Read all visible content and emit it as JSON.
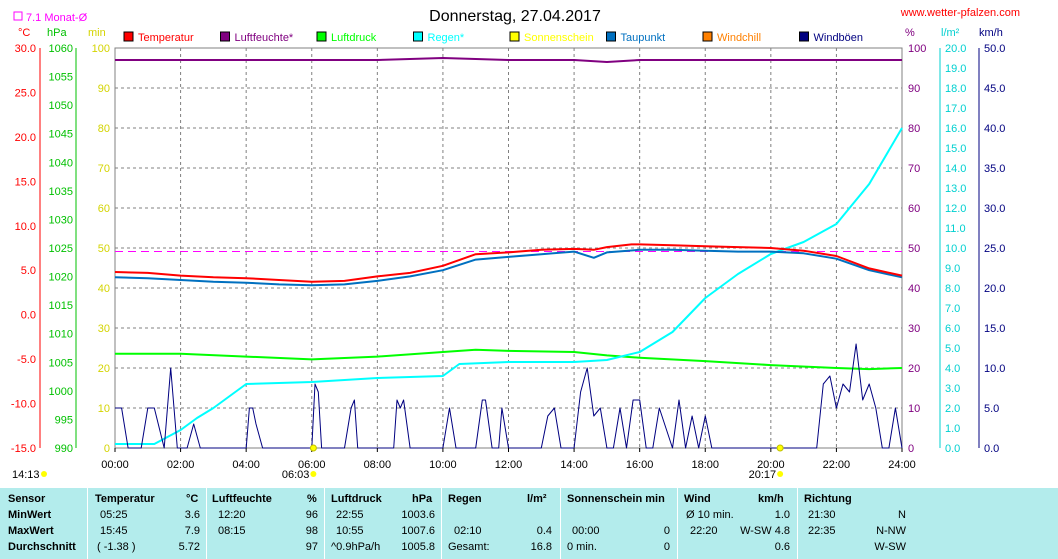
{
  "header": {
    "title": "Donnerstag, 27.04.2017",
    "site": "www.wetter-pfalzen.com",
    "monthly_avg_label": "7.1 Monat-Ø"
  },
  "units": {
    "temp": "°C",
    "hpa": "hPa",
    "min": "min",
    "pct": "%",
    "lm2": "l/m²",
    "kmh": "km/h"
  },
  "legend": [
    {
      "label": "Temperatur",
      "color": "#ff0000"
    },
    {
      "label": "Luftfeuchte*",
      "color": "#800080"
    },
    {
      "label": "Luftdruck",
      "color": "#00ff00"
    },
    {
      "label": "Regen*",
      "color": "#00ffff"
    },
    {
      "label": "Sonnenschein",
      "color": "#ffff00"
    },
    {
      "label": "Taupunkt",
      "color": "#0070c0"
    },
    {
      "label": "Windchill",
      "color": "#ff8000"
    },
    {
      "label": "Windböen",
      "color": "#000080"
    }
  ],
  "axes": {
    "temp_ticks": [
      "30.0",
      "25.0",
      "20.0",
      "15.0",
      "10.0",
      "5.0",
      "0.0",
      "-5.0",
      "-10.0",
      "-15.0"
    ],
    "hpa_ticks": [
      "1060",
      "1055",
      "1050",
      "1045",
      "1040",
      "1035",
      "1030",
      "1025",
      "1020",
      "1015",
      "1010",
      "1005",
      "1000",
      "995",
      "990"
    ],
    "min_ticks": [
      "100",
      "90",
      "80",
      "70",
      "60",
      "50",
      "40",
      "30",
      "20",
      "10",
      "0"
    ],
    "pct_ticks": [
      "100",
      "90",
      "80",
      "70",
      "60",
      "50",
      "40",
      "30",
      "20",
      "10",
      "0"
    ],
    "lm2_ticks": [
      "20.0",
      "19.0",
      "18.0",
      "17.0",
      "16.0",
      "15.0",
      "14.0",
      "13.0",
      "12.0",
      "11.0",
      "10.0",
      "9.0",
      "8.0",
      "7.0",
      "6.0",
      "5.0",
      "4.0",
      "3.0",
      "2.0",
      "1.0",
      "0.0"
    ],
    "kmh_ticks": [
      "50.0",
      "45.0",
      "40.0",
      "35.0",
      "30.0",
      "25.0",
      "20.0",
      "15.0",
      "10.0",
      "5.0",
      "0.0"
    ],
    "x_ticks": [
      "00:00",
      "02:00",
      "04:00",
      "06:00",
      "08:00",
      "10:00",
      "12:00",
      "14:00",
      "16:00",
      "18:00",
      "20:00",
      "22:00",
      "24:00"
    ],
    "sunrise": "06:03",
    "sunset": "20:17",
    "current_time": "14:13"
  },
  "chart_data": {
    "type": "line",
    "title": "Donnerstag, 27.04.2017",
    "x_range": [
      0,
      24
    ],
    "monthly_avg_temp": 7.1,
    "series": [
      {
        "name": "Temperatur",
        "unit": "°C",
        "color": "#ff0000",
        "x": [
          0,
          1,
          2,
          3,
          4,
          5,
          6,
          7,
          8,
          9,
          10,
          11,
          12,
          13,
          14,
          14.6,
          15,
          15.75,
          16,
          17,
          18,
          19,
          20,
          21,
          22,
          23,
          24
        ],
        "y": [
          4.8,
          4.7,
          4.4,
          4.2,
          4.1,
          3.9,
          3.7,
          3.8,
          4.3,
          4.7,
          5.5,
          6.8,
          7.0,
          7.3,
          7.4,
          7.3,
          7.6,
          7.9,
          7.9,
          7.8,
          7.7,
          7.6,
          7.5,
          7.2,
          6.6,
          5.2,
          4.4
        ]
      },
      {
        "name": "Luftfeuchte*",
        "unit": "%",
        "color": "#800080",
        "x": [
          0,
          4,
          8,
          10,
          12,
          14,
          15,
          16,
          20,
          24
        ],
        "y": [
          97,
          97,
          97,
          97.5,
          97,
          97,
          96.5,
          97,
          97,
          97
        ]
      },
      {
        "name": "Luftdruck",
        "unit": "hPa",
        "color": "#00ff00",
        "x": [
          0,
          2,
          4,
          6,
          8,
          10,
          11,
          12,
          14,
          15,
          16,
          18,
          20,
          22,
          23,
          24
        ],
        "y": [
          1006.5,
          1006.5,
          1006.0,
          1005.5,
          1006.0,
          1006.8,
          1007.2,
          1007.0,
          1006.8,
          1006.2,
          1005.8,
          1005.2,
          1004.5,
          1004.0,
          1003.8,
          1004.0
        ]
      },
      {
        "name": "Regen*",
        "unit": "l/m²",
        "color": "#00ffff",
        "x": [
          0,
          1.2,
          2,
          2.5,
          3,
          4,
          6,
          8,
          10,
          10.5,
          12,
          14,
          15,
          16,
          17,
          18,
          19,
          20,
          21,
          22,
          23,
          24
        ],
        "y": [
          0.2,
          0.2,
          0.9,
          1.5,
          2.0,
          3.2,
          3.3,
          3.5,
          3.6,
          4.2,
          4.3,
          4.3,
          4.4,
          4.8,
          5.8,
          7.5,
          8.7,
          9.7,
          10.3,
          11.2,
          13.2,
          16.0
        ]
      },
      {
        "name": "Taupunkt",
        "unit": "°C",
        "color": "#0070c0",
        "x": [
          0,
          1,
          2,
          3,
          4,
          5,
          6,
          7,
          8,
          9,
          10,
          11,
          12,
          13,
          14,
          14.6,
          15,
          16,
          17,
          18,
          19,
          20,
          21,
          22,
          23,
          24
        ],
        "y": [
          4.2,
          4.1,
          3.9,
          3.7,
          3.6,
          3.4,
          3.3,
          3.4,
          3.8,
          4.3,
          5.0,
          6.2,
          6.5,
          6.8,
          7.1,
          6.4,
          7.0,
          7.3,
          7.3,
          7.2,
          7.1,
          7.1,
          6.9,
          6.3,
          5.0,
          4.2
        ]
      },
      {
        "name": "Windböen",
        "unit": "km/h",
        "color": "#000080",
        "x": [
          0,
          0.2,
          0.4,
          0.6,
          0.8,
          1.0,
          1.2,
          1.5,
          1.7,
          1.9,
          2.0,
          2.2,
          2.4,
          2.6,
          2.8,
          3,
          3.5,
          4.0,
          4.1,
          4.2,
          4.3,
          4.5,
          5,
          6,
          6.1,
          6.2,
          6.3,
          7,
          7.2,
          7.3,
          7.4,
          7.5,
          7.6,
          7.8,
          8,
          8.5,
          8.6,
          8.7,
          8.8,
          9,
          9.2,
          10,
          10.2,
          10.4,
          10.6,
          11,
          11.2,
          11.3,
          11.5,
          11.7,
          11.8,
          12,
          12.2,
          13,
          13.2,
          13.4,
          13.6,
          13.8,
          14,
          14.2,
          14.4,
          14.6,
          14.8,
          15,
          15.2,
          15.4,
          15.6,
          15.8,
          16,
          16.2,
          16.4,
          16.6,
          17,
          17.2,
          17.4,
          17.6,
          17.8,
          18,
          18.2,
          18.4,
          19,
          19.2,
          19.4,
          19.6,
          20,
          20.2,
          21,
          21.2,
          21.4,
          21.6,
          21.8,
          22,
          22.2,
          22.4,
          22.6,
          22.8,
          23,
          23.2,
          23.4,
          23.6,
          23.8,
          24
        ],
        "y": [
          5,
          5,
          0,
          0,
          0,
          5,
          5,
          0,
          10,
          0,
          0,
          0,
          3,
          0,
          0,
          0,
          0,
          0,
          5,
          5,
          3,
          0,
          0,
          0,
          8,
          7,
          0,
          0,
          5,
          6,
          0,
          0,
          0,
          0,
          0,
          0,
          6,
          5,
          6,
          0,
          0,
          0,
          5,
          0,
          0,
          0,
          6,
          6,
          0,
          0,
          5,
          0,
          0,
          0,
          4,
          5,
          0,
          0,
          0,
          7,
          10,
          4,
          5,
          0,
          0,
          5,
          0,
          6,
          6,
          0,
          0,
          5,
          0,
          6,
          0,
          4,
          0,
          4,
          0,
          0,
          0,
          0,
          0,
          0,
          0,
          0,
          0,
          0,
          0,
          8,
          9,
          5,
          8,
          7,
          13,
          6,
          8,
          5,
          0,
          0,
          5,
          0
        ]
      }
    ]
  },
  "stats": {
    "headers": {
      "sensor": "Sensor",
      "temp": "Temperatur",
      "temp_u": "°C",
      "hum": "Luftfeuchte",
      "hum_u": "%",
      "press": "Luftdruck",
      "press_u": "hPa",
      "rain": "Regen",
      "rain_u": "l/m²",
      "sun": "Sonnenschein min",
      "wind": "Wind",
      "wind_u": "km/h",
      "dir": "Richtung"
    },
    "rows": [
      {
        "label": "MinWert",
        "temp_t": "05:25",
        "temp_v": "3.6",
        "hum_t": "12:20",
        "hum_v": "96",
        "press_t": "22:55",
        "press_v": "1003.6",
        "rain_t": "",
        "rain_v": "",
        "sun_t": "",
        "sun_v": "",
        "wind_t": "Ø 10 min.",
        "wind_v": "1.0",
        "dir_t": "21:30",
        "dir_v": "N"
      },
      {
        "label": "MaxWert",
        "temp_t": "15:45",
        "temp_v": "7.9",
        "hum_t": "08:15",
        "hum_v": "98",
        "press_t": "10:55",
        "press_v": "1007.6",
        "rain_t": "02:10",
        "rain_v": "0.4",
        "sun_t": "00:00",
        "sun_v": "0",
        "wind_t": "22:20",
        "wind_v": "W-SW 4.8",
        "dir_t": "22:35",
        "dir_v": "N-NW"
      },
      {
        "label": "Durchschnitt",
        "temp_t": "( -1.38 )",
        "temp_v": "5.72",
        "hum_t": "",
        "hum_v": "97",
        "press_t": "^0.9hPa/h",
        "press_v": "1005.8",
        "rain_t": "Gesamt:",
        "rain_v": "16.8",
        "sun_t": "0 min.",
        "sun_v": "0",
        "wind_t": "",
        "wind_v": "0.6",
        "dir_t": "",
        "dir_v": "W-SW"
      }
    ]
  }
}
